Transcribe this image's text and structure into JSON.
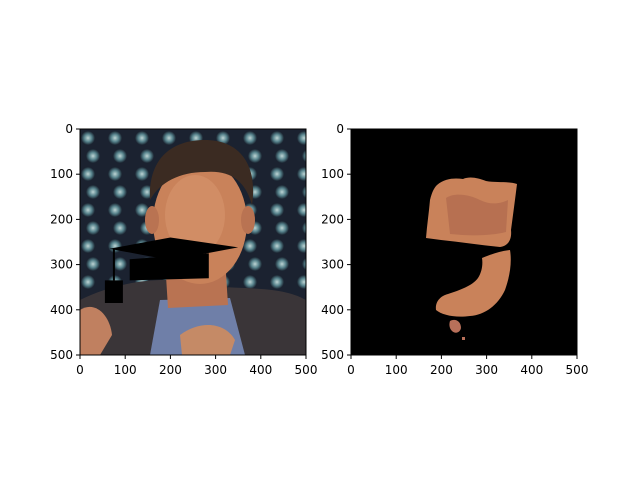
{
  "chart_data": [
    {
      "type": "image",
      "panel": "left",
      "description_visible": "photo of a man in a suit with a graduation-cap shaped black overlay drawn over the lower face",
      "x_ticks": [
        "0",
        "100",
        "200",
        "300",
        "400",
        "500"
      ],
      "y_ticks": [
        "0",
        "100",
        "200",
        "300",
        "400",
        "500"
      ],
      "xlim": [
        0,
        500
      ],
      "ylim": [
        500,
        0
      ],
      "overlay": {
        "shape": "graduation cap",
        "color": "#000000",
        "board": [
          [
            65,
            265
          ],
          [
            200,
            240
          ],
          [
            350,
            262
          ],
          [
            200,
            290
          ]
        ],
        "band": [
          [
            110,
            288
          ],
          [
            285,
            275
          ],
          [
            285,
            330
          ],
          [
            110,
            335
          ]
        ],
        "tassel_string": [
          [
            75,
            265
          ],
          [
            75,
            335
          ]
        ],
        "tassel": [
          [
            55,
            335
          ],
          [
            95,
            335
          ],
          [
            95,
            385
          ],
          [
            55,
            385
          ]
        ]
      }
    },
    {
      "type": "image",
      "panel": "right",
      "description_visible": "segmentation result: black background with the skin region of the face shown in color",
      "x_ticks": [
        "0",
        "100",
        "200",
        "300",
        "400",
        "500"
      ],
      "y_ticks": [
        "0",
        "100",
        "200",
        "300",
        "400",
        "500"
      ],
      "xlim": [
        0,
        500
      ],
      "ylim": [
        500,
        0
      ]
    }
  ],
  "colors": {
    "background": "#ffffff",
    "mask_background": "#000000",
    "skin": "#c9825a",
    "skin_light": "#e0a27c",
    "hair": "#3b2b22",
    "suit": "#3a3538",
    "shirt": "#6f7fa8"
  }
}
